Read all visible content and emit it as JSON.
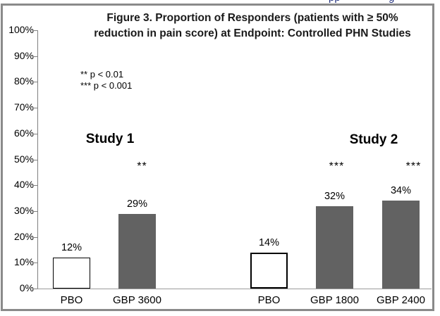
{
  "figure": {
    "top_edge_clipped_fragments": [
      {
        "text": "pp",
        "x": 466
      },
      {
        "text": "g",
        "x": 551
      }
    ]
  },
  "chart_data": {
    "type": "bar",
    "title": "Figure 3. Proportion of Responders (patients with ≥ 50% reduction in pain score) at Endpoint: Controlled PHN Studies",
    "title_lines": [
      "Figure 3. Proportion of Responders (patients with ≥ 50%",
      "reduction in pain score) at Endpoint: Controlled PHN Studies"
    ],
    "legend_notes": [
      "** p < 0.01",
      "*** p < 0.001"
    ],
    "xlabel": "",
    "ylabel": "",
    "ylim": [
      0,
      100
    ],
    "ytick_step": 10,
    "ytick_labels": [
      "0%",
      "10%",
      "20%",
      "30%",
      "40%",
      "50%",
      "60%",
      "70%",
      "80%",
      "90%",
      "100%"
    ],
    "grid": false,
    "legend_position": "upper-left-inside",
    "groups": [
      {
        "name": "Study 1",
        "bars": [
          {
            "category": "PBO",
            "value": 12,
            "value_label": "12%",
            "significance": "",
            "fill": "#ffffff",
            "border_color": "#000000",
            "border_px": 1
          },
          {
            "category": "GBP 3600",
            "value": 29,
            "value_label": "29%",
            "significance": "**",
            "fill": "#626262",
            "border_color": "",
            "border_px": 0
          }
        ]
      },
      {
        "name": "Study 2",
        "bars": [
          {
            "category": "PBO",
            "value": 14,
            "value_label": "14%",
            "significance": "",
            "fill": "#ffffff",
            "border_color": "#000000",
            "border_px": 2
          },
          {
            "category": "GBP 1800",
            "value": 32,
            "value_label": "32%",
            "significance": "***",
            "fill": "#626262",
            "border_color": "",
            "border_px": 0
          },
          {
            "category": "GBP 2400",
            "value": 34,
            "value_label": "34%",
            "significance": "***",
            "fill": "#626262",
            "border_color": "",
            "border_px": 0
          }
        ]
      }
    ],
    "colors": {
      "responder_bar": "#626262",
      "placebo_bar": "#ffffff",
      "axis": "#808080",
      "frame_border": "#8a8a8a",
      "text": "#000000"
    }
  }
}
